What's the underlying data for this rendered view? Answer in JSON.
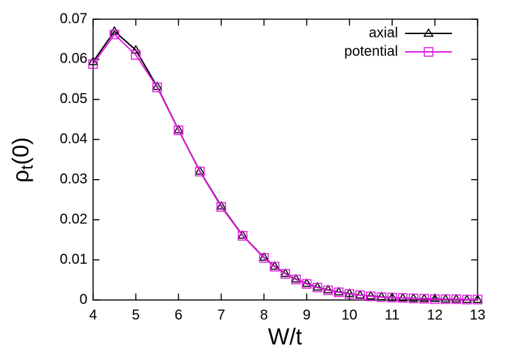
{
  "chart_data": {
    "type": "line",
    "xlabel": "W/t",
    "ylabel": {
      "symbol": "ρ",
      "subscript": "t",
      "suffix": "(0)"
    },
    "x": [
      4,
      4.5,
      5,
      5.5,
      6,
      6.5,
      7,
      7.5,
      8,
      8.25,
      8.5,
      8.75,
      9,
      9.25,
      9.5,
      9.75,
      10,
      10.25,
      10.5,
      10.75,
      11,
      11.25,
      11.5,
      11.75,
      12,
      12.25,
      12.5,
      12.75,
      13
    ],
    "series": [
      {
        "name": "axial",
        "color": "#000000",
        "marker": "triangle",
        "values": [
          0.0594,
          0.067,
          0.0623,
          0.0532,
          0.0424,
          0.0321,
          0.0234,
          0.0161,
          0.0106,
          0.0084,
          0.0066,
          0.0052,
          0.0041,
          0.0032,
          0.0025,
          0.002,
          0.0016,
          0.0012,
          0.001,
          0.0008,
          0.0006,
          0.0005,
          0.0004,
          0.0003,
          0.0003,
          0.0002,
          0.0002,
          0.0001,
          0.0001
        ]
      },
      {
        "name": "potential",
        "color": "#e020e0",
        "marker": "square",
        "values": [
          0.0588,
          0.0662,
          0.0611,
          0.053,
          0.0423,
          0.032,
          0.0232,
          0.016,
          0.0105,
          0.0083,
          0.0065,
          0.0051,
          0.004,
          0.0031,
          0.0024,
          0.0019,
          0.0015,
          0.0012,
          0.0009,
          0.0007,
          0.0006,
          0.0005,
          0.0004,
          0.0003,
          0.0002,
          0.0002,
          0.0002,
          0.0001,
          0.0001
        ]
      }
    ],
    "xlim": [
      4,
      13
    ],
    "xticks": [
      4,
      5,
      6,
      7,
      8,
      9,
      10,
      11,
      12,
      13
    ],
    "ylim": [
      0,
      0.07
    ],
    "yticks": [
      0,
      0.01,
      0.02,
      0.03,
      0.04,
      0.05,
      0.06,
      0.07
    ],
    "legend": "top-right"
  }
}
